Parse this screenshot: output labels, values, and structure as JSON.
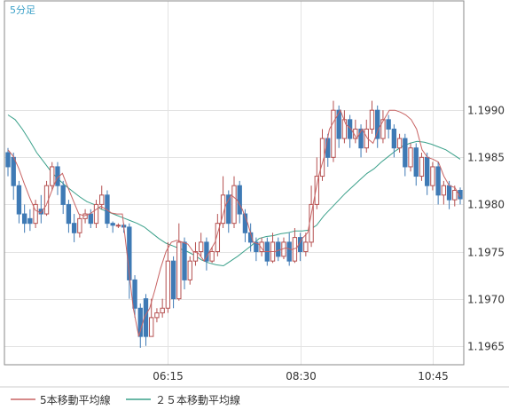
{
  "chart_data": {
    "type": "candlestick",
    "title": "5分足",
    "x_tick_labels": [
      "06:15",
      "08:30",
      "10:45"
    ],
    "y_tick_labels": [
      "1.1965",
      "1.1970",
      "1.1975",
      "1.1980",
      "1.1985",
      "1.1990"
    ],
    "y_ticks": [
      1.1965,
      1.197,
      1.1975,
      1.198,
      1.1985,
      1.199
    ],
    "ylim": [
      1.1963,
      1.20016
    ],
    "grid": true,
    "legend_position": "bottom-left",
    "up_color": "#b55050",
    "down_color": "#3f7ab5",
    "ma5": {
      "name": "5本移動平均線",
      "color": "#c86464",
      "values": [
        1.19858,
        1.19851,
        1.19838,
        1.19822,
        1.19807,
        1.19794,
        1.19791,
        1.19799,
        1.19814,
        1.19828,
        1.19833,
        1.19818,
        1.19804,
        1.1979,
        1.19788,
        1.1979,
        1.19794,
        1.19798,
        1.19795,
        1.19791,
        1.1979,
        1.1979,
        1.1974,
        1.1969,
        1.1966,
        1.1968,
        1.1969,
        1.1971,
        1.19732,
        1.1975,
        1.1976,
        1.19762,
        1.1976,
        1.19758,
        1.1975,
        1.19748,
        1.1974,
        1.1975,
        1.1976,
        1.1978,
        1.198,
        1.1981,
        1.19805,
        1.19795,
        1.1978,
        1.1976,
        1.19758,
        1.1975,
        1.1975,
        1.1975,
        1.19752,
        1.19754,
        1.19752,
        1.19754,
        1.19764,
        1.1977,
        1.198,
        1.1983,
        1.1985,
        1.1988,
        1.1989,
        1.199,
        1.19885,
        1.1988,
        1.1987,
        1.1988,
        1.1987,
        1.19865,
        1.1988,
        1.1989,
        1.199,
        1.199,
        1.19898,
        1.19895,
        1.1989,
        1.1988,
        1.19858,
        1.1985,
        1.19848,
        1.19845,
        1.1983,
        1.1982,
        1.19818,
        1.19808
      ]
    },
    "ma25": {
      "name": "２５本移動平均線",
      "color": "#3aa08a",
      "values": [
        1.19895,
        1.1989,
        1.1988,
        1.19868,
        1.19855,
        1.19845,
        1.19835,
        1.19827,
        1.1982,
        1.19814,
        1.19808,
        1.19803,
        1.198,
        1.19795,
        1.19792,
        1.19789,
        1.19786,
        1.19783,
        1.1978,
        1.19776,
        1.1977,
        1.19764,
        1.19759,
        1.19756,
        1.19753,
        1.1975,
        1.19746,
        1.19741,
        1.19738,
        1.19736,
        1.19735,
        1.1974,
        1.19745,
        1.19751,
        1.19757,
        1.19764,
        1.19766,
        1.19767,
        1.19769,
        1.1977,
        1.19772,
        1.19772,
        1.19773,
        1.19778,
        1.19788,
        1.19796,
        1.19804,
        1.19812,
        1.19819,
        1.19826,
        1.19833,
        1.19838,
        1.19845,
        1.19851,
        1.19857,
        1.19862,
        1.19865,
        1.19867,
        1.19866,
        1.19864,
        1.19861,
        1.19858,
        1.19853,
        1.19848
      ]
    },
    "candles": [
      {
        "o": 1.19855,
        "c": 1.1984,
        "h": 1.1986,
        "l": 1.1983,
        "up": false
      },
      {
        "o": 1.1985,
        "c": 1.1982,
        "h": 1.19855,
        "l": 1.19805,
        "up": false
      },
      {
        "o": 1.1982,
        "c": 1.1979,
        "h": 1.19825,
        "l": 1.1978,
        "up": false
      },
      {
        "o": 1.1979,
        "c": 1.1978,
        "h": 1.198,
        "l": 1.1977,
        "up": false
      },
      {
        "o": 1.19785,
        "c": 1.1978,
        "h": 1.19795,
        "l": 1.19772,
        "up": false
      },
      {
        "o": 1.1978,
        "c": 1.198,
        "h": 1.19805,
        "l": 1.19775,
        "up": true
      },
      {
        "o": 1.19795,
        "c": 1.1979,
        "h": 1.1981,
        "l": 1.1978,
        "up": false
      },
      {
        "o": 1.1979,
        "c": 1.1982,
        "h": 1.19825,
        "l": 1.19788,
        "up": true
      },
      {
        "o": 1.1982,
        "c": 1.1984,
        "h": 1.19845,
        "l": 1.19815,
        "up": true
      },
      {
        "o": 1.1984,
        "c": 1.1982,
        "h": 1.19845,
        "l": 1.1981,
        "up": false
      },
      {
        "o": 1.1982,
        "c": 1.198,
        "h": 1.19825,
        "l": 1.1979,
        "up": false
      },
      {
        "o": 1.198,
        "c": 1.1978,
        "h": 1.19805,
        "l": 1.1977,
        "up": false
      },
      {
        "o": 1.1978,
        "c": 1.1977,
        "h": 1.1979,
        "l": 1.1976,
        "up": false
      },
      {
        "o": 1.1977,
        "c": 1.19785,
        "h": 1.1979,
        "l": 1.19765,
        "up": true
      },
      {
        "o": 1.19785,
        "c": 1.1979,
        "h": 1.19795,
        "l": 1.1978,
        "up": true
      },
      {
        "o": 1.1979,
        "c": 1.1978,
        "h": 1.19795,
        "l": 1.19775,
        "up": false
      },
      {
        "o": 1.1978,
        "c": 1.198,
        "h": 1.19805,
        "l": 1.19775,
        "up": true
      },
      {
        "o": 1.198,
        "c": 1.1981,
        "h": 1.1982,
        "l": 1.19795,
        "up": true
      },
      {
        "o": 1.1981,
        "c": 1.1978,
        "h": 1.19815,
        "l": 1.19775,
        "up": false
      },
      {
        "o": 1.1978,
        "c": 1.19778,
        "h": 1.19782,
        "l": 1.1977,
        "up": false
      },
      {
        "o": 1.19778,
        "c": 1.19778,
        "h": 1.1978,
        "l": 1.19775,
        "up": true
      },
      {
        "o": 1.19778,
        "c": 1.19776,
        "h": 1.1978,
        "l": 1.1977,
        "up": false
      },
      {
        "o": 1.19776,
        "c": 1.1972,
        "h": 1.1978,
        "l": 1.197,
        "up": false
      },
      {
        "o": 1.1972,
        "c": 1.1969,
        "h": 1.19725,
        "l": 1.1968,
        "up": false
      },
      {
        "o": 1.1969,
        "c": 1.1966,
        "h": 1.19695,
        "l": 1.19648,
        "up": false
      },
      {
        "o": 1.197,
        "c": 1.1966,
        "h": 1.19705,
        "l": 1.1965,
        "up": false
      },
      {
        "o": 1.1966,
        "c": 1.1968,
        "h": 1.197,
        "l": 1.1966,
        "up": true
      },
      {
        "o": 1.1968,
        "c": 1.19685,
        "h": 1.1969,
        "l": 1.19675,
        "up": true
      },
      {
        "o": 1.19685,
        "c": 1.1969,
        "h": 1.197,
        "l": 1.1968,
        "up": true
      },
      {
        "o": 1.1969,
        "c": 1.1974,
        "h": 1.1976,
        "l": 1.19685,
        "up": true
      },
      {
        "o": 1.1974,
        "c": 1.197,
        "h": 1.19745,
        "l": 1.1969,
        "up": false
      },
      {
        "o": 1.197,
        "c": 1.1976,
        "h": 1.1978,
        "l": 1.19698,
        "up": true
      },
      {
        "o": 1.1976,
        "c": 1.1972,
        "h": 1.19765,
        "l": 1.1971,
        "up": false
      },
      {
        "o": 1.1972,
        "c": 1.1974,
        "h": 1.19745,
        "l": 1.19715,
        "up": true
      },
      {
        "o": 1.1974,
        "c": 1.1975,
        "h": 1.1976,
        "l": 1.19735,
        "up": true
      },
      {
        "o": 1.1975,
        "c": 1.1976,
        "h": 1.1977,
        "l": 1.19745,
        "up": true
      },
      {
        "o": 1.1976,
        "c": 1.1974,
        "h": 1.19765,
        "l": 1.1973,
        "up": false
      },
      {
        "o": 1.1974,
        "c": 1.1975,
        "h": 1.19755,
        "l": 1.19738,
        "up": true
      },
      {
        "o": 1.1975,
        "c": 1.1978,
        "h": 1.1979,
        "l": 1.19745,
        "up": true
      },
      {
        "o": 1.1978,
        "c": 1.1981,
        "h": 1.1983,
        "l": 1.19775,
        "up": true
      },
      {
        "o": 1.1981,
        "c": 1.1978,
        "h": 1.19815,
        "l": 1.1977,
        "up": false
      },
      {
        "o": 1.1978,
        "c": 1.1982,
        "h": 1.1983,
        "l": 1.19775,
        "up": true
      },
      {
        "o": 1.1982,
        "c": 1.1979,
        "h": 1.19825,
        "l": 1.1978,
        "up": false
      },
      {
        "o": 1.1979,
        "c": 1.1977,
        "h": 1.19795,
        "l": 1.1976,
        "up": false
      },
      {
        "o": 1.1977,
        "c": 1.1976,
        "h": 1.1978,
        "l": 1.1975,
        "up": false
      },
      {
        "o": 1.1976,
        "c": 1.1975,
        "h": 1.19765,
        "l": 1.1974,
        "up": false
      },
      {
        "o": 1.1975,
        "c": 1.1976,
        "h": 1.19765,
        "l": 1.19745,
        "up": true
      },
      {
        "o": 1.1976,
        "c": 1.1974,
        "h": 1.19765,
        "l": 1.19735,
        "up": false
      },
      {
        "o": 1.1974,
        "c": 1.1976,
        "h": 1.1977,
        "l": 1.19738,
        "up": true
      },
      {
        "o": 1.1976,
        "c": 1.19745,
        "h": 1.19765,
        "l": 1.1974,
        "up": false
      },
      {
        "o": 1.19745,
        "c": 1.1976,
        "h": 1.19765,
        "l": 1.19742,
        "up": true
      },
      {
        "o": 1.1976,
        "c": 1.1974,
        "h": 1.1977,
        "l": 1.19735,
        "up": false
      },
      {
        "o": 1.1974,
        "c": 1.19765,
        "h": 1.19775,
        "l": 1.19738,
        "up": true
      },
      {
        "o": 1.19765,
        "c": 1.1975,
        "h": 1.1977,
        "l": 1.1974,
        "up": false
      },
      {
        "o": 1.1975,
        "c": 1.1976,
        "h": 1.1977,
        "l": 1.19745,
        "up": true
      },
      {
        "o": 1.1976,
        "c": 1.198,
        "h": 1.1982,
        "l": 1.19755,
        "up": true
      },
      {
        "o": 1.198,
        "c": 1.1983,
        "h": 1.1985,
        "l": 1.19795,
        "up": true
      },
      {
        "o": 1.1983,
        "c": 1.1987,
        "h": 1.1988,
        "l": 1.19825,
        "up": true
      },
      {
        "o": 1.1987,
        "c": 1.1985,
        "h": 1.19875,
        "l": 1.1984,
        "up": false
      },
      {
        "o": 1.1985,
        "c": 1.199,
        "h": 1.1991,
        "l": 1.19845,
        "up": true
      },
      {
        "o": 1.199,
        "c": 1.1987,
        "h": 1.19905,
        "l": 1.1986,
        "up": false
      },
      {
        "o": 1.1987,
        "c": 1.1989,
        "h": 1.199,
        "l": 1.19865,
        "up": true
      },
      {
        "o": 1.1989,
        "c": 1.1987,
        "h": 1.19895,
        "l": 1.1986,
        "up": false
      },
      {
        "o": 1.1987,
        "c": 1.1988,
        "h": 1.1989,
        "l": 1.19865,
        "up": true
      },
      {
        "o": 1.1988,
        "c": 1.1986,
        "h": 1.19885,
        "l": 1.1985,
        "up": false
      },
      {
        "o": 1.1986,
        "c": 1.1988,
        "h": 1.1989,
        "l": 1.19855,
        "up": true
      },
      {
        "o": 1.1988,
        "c": 1.199,
        "h": 1.1991,
        "l": 1.19875,
        "up": true
      },
      {
        "o": 1.199,
        "c": 1.1987,
        "h": 1.19905,
        "l": 1.1986,
        "up": false
      },
      {
        "o": 1.1987,
        "c": 1.1989,
        "h": 1.199,
        "l": 1.19865,
        "up": true
      },
      {
        "o": 1.1989,
        "c": 1.1988,
        "h": 1.19895,
        "l": 1.1987,
        "up": false
      },
      {
        "o": 1.1988,
        "c": 1.1986,
        "h": 1.19885,
        "l": 1.1985,
        "up": false
      },
      {
        "o": 1.1986,
        "c": 1.1987,
        "h": 1.19875,
        "l": 1.19855,
        "up": true
      },
      {
        "o": 1.1987,
        "c": 1.1984,
        "h": 1.19875,
        "l": 1.1983,
        "up": false
      },
      {
        "o": 1.1984,
        "c": 1.1986,
        "h": 1.19865,
        "l": 1.19835,
        "up": true
      },
      {
        "o": 1.1986,
        "c": 1.1983,
        "h": 1.19865,
        "l": 1.1982,
        "up": false
      },
      {
        "o": 1.1983,
        "c": 1.1985,
        "h": 1.19855,
        "l": 1.19825,
        "up": true
      },
      {
        "o": 1.1985,
        "c": 1.1982,
        "h": 1.19855,
        "l": 1.1981,
        "up": false
      },
      {
        "o": 1.1982,
        "c": 1.1984,
        "h": 1.19845,
        "l": 1.19815,
        "up": true
      },
      {
        "o": 1.1984,
        "c": 1.1981,
        "h": 1.19845,
        "l": 1.198,
        "up": false
      },
      {
        "o": 1.1981,
        "c": 1.1982,
        "h": 1.19825,
        "l": 1.198,
        "up": true
      },
      {
        "o": 1.1982,
        "c": 1.19805,
        "h": 1.19825,
        "l": 1.19795,
        "up": false
      },
      {
        "o": 1.19805,
        "c": 1.19815,
        "h": 1.1982,
        "l": 1.19798,
        "up": true
      },
      {
        "o": 1.19815,
        "c": 1.19806,
        "h": 1.19818,
        "l": 1.198,
        "up": false
      }
    ],
    "x_tick_index": [
      29,
      53,
      77
    ]
  }
}
